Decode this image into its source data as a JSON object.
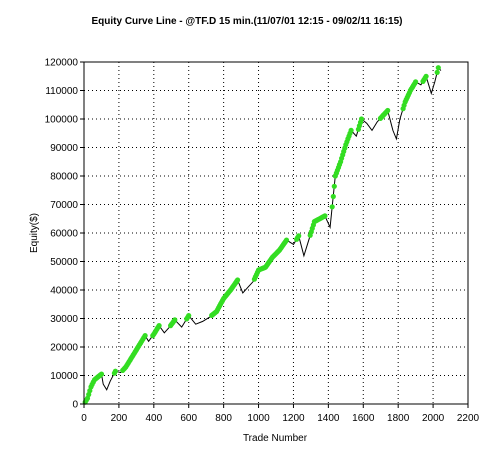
{
  "chart_data": {
    "type": "line",
    "title": "Equity Curve Line - @TF.D 15 min.(11/07/01 12:15 - 09/02/11 16:15)",
    "xlabel": "Trade Number",
    "ylabel": "Equity($)",
    "xlim": [
      0,
      2200
    ],
    "ylim": [
      0,
      120000
    ],
    "x_ticks": [
      "0",
      "200",
      "400",
      "600",
      "800",
      "1000",
      "1200",
      "1400",
      "1600",
      "1800",
      "2000",
      "2200"
    ],
    "y_ticks": [
      "0",
      "10000",
      "20000",
      "30000",
      "40000",
      "50000",
      "60000",
      "70000",
      "80000",
      "90000",
      "100000",
      "110000",
      "120000"
    ],
    "x_tick_values": [
      0,
      200,
      400,
      600,
      800,
      1000,
      1200,
      1400,
      1600,
      1800,
      2000,
      2200
    ],
    "y_tick_values": [
      0,
      10000,
      20000,
      30000,
      40000,
      50000,
      60000,
      70000,
      80000,
      90000,
      100000,
      110000,
      120000
    ],
    "grid": true,
    "colors": {
      "line": "#000000",
      "new_high_marker": "#33dd22",
      "axis": "#000000",
      "grid": "#000000"
    },
    "series": [
      {
        "x": [
          0,
          20,
          40,
          60,
          80,
          100,
          110,
          130,
          150,
          180,
          210,
          240,
          270,
          300,
          330,
          350,
          370,
          400,
          430,
          460,
          490,
          520,
          560,
          600,
          640,
          680,
          720,
          760,
          800,
          840,
          880,
          910,
          940,
          970,
          1000,
          1040,
          1080,
          1120,
          1160,
          1200,
          1230,
          1260,
          1290,
          1320,
          1350,
          1380,
          1410,
          1440,
          1470,
          1500,
          1530,
          1560,
          1590,
          1620,
          1650,
          1680,
          1710,
          1740,
          1770,
          1790,
          1810,
          1840,
          1870,
          1900,
          1930,
          1960,
          1990,
          2010,
          2030,
          2045
        ],
        "y": [
          0,
          2000,
          6000,
          8500,
          9500,
          10500,
          7000,
          5000,
          8000,
          11500,
          11000,
          13000,
          16000,
          19000,
          22000,
          24000,
          22000,
          24500,
          27500,
          25000,
          27000,
          29500,
          27000,
          31000,
          28000,
          29000,
          30500,
          32500,
          37000,
          40000,
          43500,
          39000,
          41000,
          43000,
          47000,
          48000,
          51500,
          54000,
          57500,
          56000,
          59000,
          52000,
          58000,
          64000,
          65000,
          66000,
          62000,
          80000,
          85000,
          91000,
          96000,
          94000,
          100000,
          98500,
          96000,
          99000,
          101000,
          103000,
          96000,
          93000,
          100000,
          106000,
          110000,
          113000,
          112000,
          115000,
          109000,
          113000,
          118000,
          117000
        ]
      }
    ]
  }
}
